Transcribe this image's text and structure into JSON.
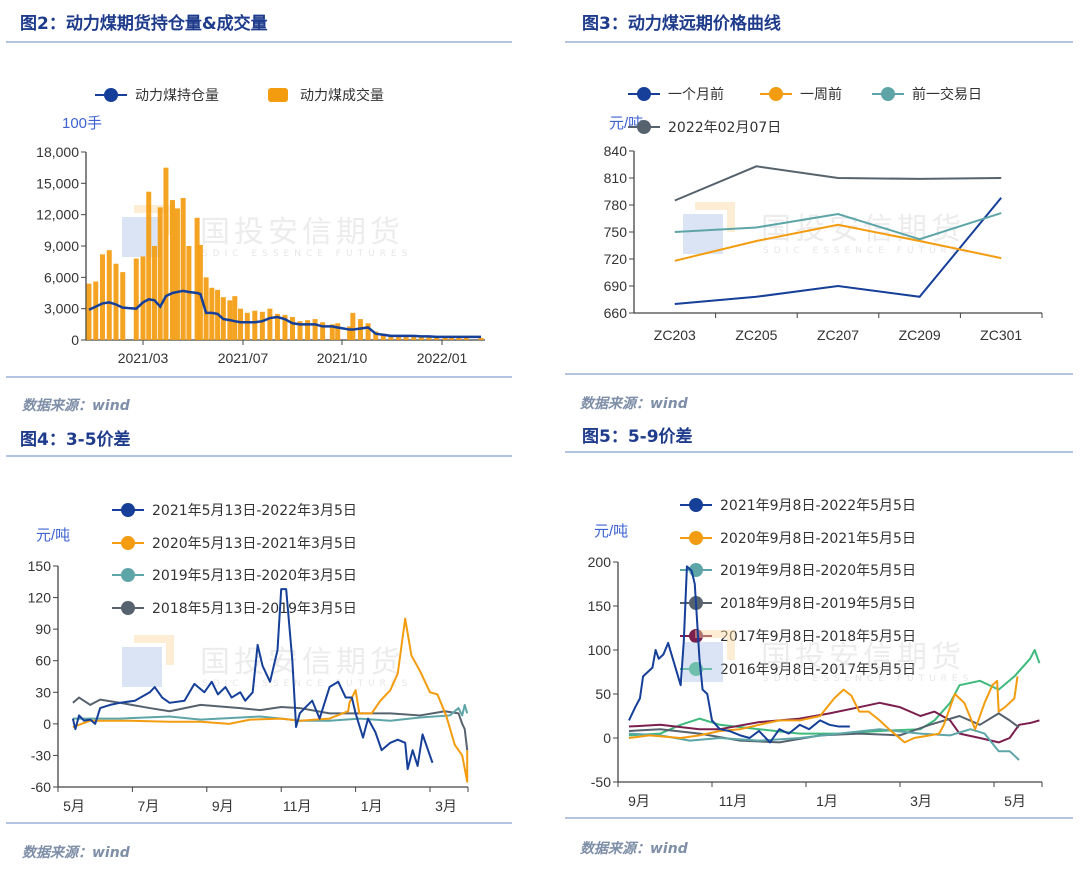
{
  "source_label": "数据来源：wind",
  "watermark": {
    "cn": "国投安信期货",
    "en": "SDIC ESSENCE FUTURES"
  },
  "colors": {
    "title": "#1f3c8c",
    "rule": "#b3c3e2",
    "unit": "#3e63d1"
  },
  "chart_data": [
    {
      "type": "bar+line",
      "title": "图2：动力煤期货持仓量&成交量",
      "yunit": "100手",
      "ylim": [
        0,
        18000
      ],
      "yticks": [
        0,
        3000,
        6000,
        9000,
        12000,
        15000,
        18000
      ],
      "xticks": [
        {
          "date": "2021-03-01",
          "label": "2021/03"
        },
        {
          "date": "2021-07-01",
          "label": "2021/07"
        },
        {
          "date": "2021-10-01",
          "label": "2021/10"
        },
        {
          "date": "2022-01-01",
          "label": "2022/01"
        }
      ],
      "grid": false,
      "legend": "top",
      "x": [
        "2021-01-04",
        "2021-01-11",
        "2021-01-18",
        "2021-01-25",
        "2021-02-01",
        "2021-02-08",
        "2021-02-22",
        "2021-03-01",
        "2021-03-08",
        "2021-03-15",
        "2021-03-22",
        "2021-03-29",
        "2021-04-06",
        "2021-04-12",
        "2021-04-19",
        "2021-04-26",
        "2021-05-06",
        "2021-05-10",
        "2021-05-17",
        "2021-05-24",
        "2021-05-31",
        "2021-06-07",
        "2021-06-15",
        "2021-06-21",
        "2021-06-28",
        "2021-07-05",
        "2021-07-12",
        "2021-07-19",
        "2021-07-26",
        "2021-08-02",
        "2021-08-09",
        "2021-08-16",
        "2021-08-23",
        "2021-08-30",
        "2021-09-06",
        "2021-09-13",
        "2021-09-22",
        "2021-09-27",
        "2021-10-08",
        "2021-10-11",
        "2021-10-18",
        "2021-10-25",
        "2021-11-01",
        "2021-11-08",
        "2021-11-15",
        "2021-11-22",
        "2021-11-29",
        "2021-12-06",
        "2021-12-13",
        "2021-12-20",
        "2021-12-27",
        "2022-01-04",
        "2022-01-10",
        "2022-01-17",
        "2022-01-24",
        "2022-02-07"
      ],
      "series": [
        {
          "name": "动力煤持仓量",
          "type": "line",
          "color": "#153f98",
          "values": [
            2900,
            3200,
            3500,
            3600,
            3400,
            3100,
            3000,
            3600,
            3900,
            3800,
            3200,
            4200,
            4500,
            4600,
            4700,
            4600,
            4500,
            4400,
            2600,
            2600,
            2500,
            2000,
            1900,
            1800,
            1700,
            1700,
            1700,
            1800,
            2100,
            2200,
            2000,
            1600,
            1500,
            1500,
            1500,
            1300,
            1300,
            1200,
            1000,
            1000,
            1100,
            1200,
            600,
            500,
            400,
            400,
            400,
            400,
            350,
            350,
            300,
            300,
            300,
            300,
            300,
            300
          ]
        },
        {
          "name": "动力煤成交量",
          "type": "bar",
          "color": "#f39c0f",
          "values": [
            5400,
            5600,
            8200,
            8600,
            7300,
            6500,
            7800,
            8000,
            14200,
            9000,
            12700,
            16500,
            13400,
            12600,
            13600,
            9000,
            11700,
            9100,
            6000,
            5000,
            4800,
            4100,
            3800,
            4200,
            3000,
            2600,
            2800,
            2700,
            3000,
            2500,
            2400,
            2200,
            1800,
            1900,
            2000,
            1700,
            1500,
            1600,
            1300,
            2600,
            2000,
            1600,
            800,
            600,
            500,
            400,
            400,
            350,
            300,
            300,
            300,
            250,
            250,
            200,
            200,
            200
          ]
        }
      ]
    },
    {
      "type": "line",
      "title": "图3：动力煤远期价格曲线",
      "yunit": "元/吨",
      "ylim": [
        660,
        840
      ],
      "yticks": [
        660,
        690,
        720,
        750,
        780,
        810,
        840
      ],
      "categories": [
        "ZC203",
        "ZC205",
        "ZC207",
        "ZC209",
        "ZC301"
      ],
      "grid": false,
      "legend": "top",
      "series": [
        {
          "name": "一个月前",
          "color": "#153f98",
          "values": [
            670,
            678,
            690,
            678,
            788
          ]
        },
        {
          "name": "一周前",
          "color": "#f39c0f",
          "values": [
            718,
            740,
            758,
            740,
            721
          ]
        },
        {
          "name": "前一交易日",
          "color": "#5ea5a8",
          "values": [
            750,
            755,
            770,
            742,
            771
          ]
        },
        {
          "name": "2022年02月07日",
          "color": "#56636e",
          "values": [
            785,
            823,
            810,
            809,
            810
          ]
        }
      ]
    },
    {
      "type": "line",
      "title": "图4：3-5价差",
      "yunit": "元/吨",
      "ylim": [
        -60,
        150
      ],
      "yticks": [
        -60,
        -30,
        0,
        30,
        60,
        90,
        120,
        150
      ],
      "xticks": [
        "5月",
        "7月",
        "9月",
        "11月",
        "1月",
        "3月"
      ],
      "grid": false,
      "legend": "top",
      "series": [
        {
          "name": "2021年5月13日-2022年3月5日",
          "color": "#153f98",
          "x": [
            "05-13",
            "05-15",
            "05-18",
            "05-22",
            "05-27",
            "06-01",
            "06-05",
            "06-13",
            "06-21",
            "07-03",
            "07-15",
            "07-19",
            "07-25",
            "08-01",
            "08-13",
            "08-21",
            "08-29",
            "09-05",
            "09-10",
            "09-16",
            "09-21",
            "09-28",
            "10-02",
            "10-08",
            "10-12",
            "10-16",
            "10-22",
            "10-28",
            "10-31",
            "11-05",
            "11-10",
            "11-13",
            "11-16",
            "11-20",
            "11-26",
            "12-02",
            "12-10",
            "12-17",
            "12-23",
            "12-28",
            "01-01",
            "01-07",
            "01-11",
            "01-17",
            "01-22",
            "01-29",
            "02-05",
            "02-11",
            "02-13",
            "02-17",
            "02-21",
            "02-25",
            "03-03"
          ],
          "values": [
            5,
            -5,
            8,
            3,
            4,
            0,
            15,
            18,
            20,
            22,
            30,
            35,
            25,
            20,
            22,
            38,
            30,
            40,
            28,
            35,
            25,
            30,
            22,
            30,
            75,
            55,
            40,
            70,
            128,
            128,
            60,
            -3,
            10,
            15,
            22,
            5,
            35,
            40,
            25,
            25,
            10,
            -13,
            5,
            -8,
            -25,
            -18,
            -15,
            -18,
            -43,
            -25,
            -40,
            -10,
            -37
          ]
        },
        {
          "name": "2020年5月13日-2021年3月5日",
          "color": "#f39c0f",
          "x": [
            "05-13",
            "05-27",
            "06-29",
            "08-01",
            "08-26",
            "09-19",
            "10-06",
            "10-31",
            "11-16",
            "12-10",
            "12-25",
            "12-26",
            "01-01",
            "01-04",
            "01-14",
            "01-21",
            "01-29",
            "02-05",
            "02-11",
            "02-16",
            "02-23",
            "03-01",
            "03-07",
            "03-14",
            "03-21",
            "03-27",
            "03-31",
            "04-01"
          ],
          "values": [
            -3,
            3,
            3,
            2,
            2,
            0,
            4,
            5,
            3,
            5,
            12,
            20,
            32,
            10,
            10,
            22,
            32,
            48,
            100,
            65,
            50,
            30,
            28,
            8,
            -20,
            -30,
            -55,
            -25
          ]
        },
        {
          "name": "2019年5月13日-2020年3月5日",
          "color": "#5ea5a8",
          "x": [
            "05-13",
            "06-21",
            "08-01",
            "08-26",
            "09-11",
            "10-14",
            "10-31",
            "11-16",
            "12-10",
            "01-04",
            "01-29",
            "02-23",
            "03-17",
            "03-24",
            "03-27",
            "03-29",
            "04-01"
          ],
          "values": [
            5,
            5,
            7,
            4,
            5,
            7,
            5,
            3,
            3,
            5,
            3,
            6,
            8,
            15,
            8,
            18,
            10
          ]
        },
        {
          "name": "2018年5月13日-2019年3月5日",
          "color": "#56636e",
          "x": [
            "05-13",
            "05-18",
            "05-27",
            "06-05",
            "06-21",
            "07-15",
            "08-01",
            "08-26",
            "09-28",
            "10-14",
            "10-31",
            "11-16",
            "12-10",
            "01-04",
            "01-29",
            "02-23",
            "03-13",
            "03-24",
            "03-27",
            "03-29",
            "04-01"
          ],
          "values": [
            20,
            25,
            18,
            23,
            20,
            15,
            12,
            18,
            15,
            13,
            16,
            15,
            10,
            10,
            10,
            8,
            12,
            10,
            0,
            -5,
            -25
          ]
        }
      ]
    },
    {
      "type": "line",
      "title": "图5：5-9价差",
      "yunit": "元/吨",
      "ylim": [
        -50,
        200
      ],
      "yticks": [
        -50,
        0,
        50,
        100,
        150,
        200
      ],
      "xticks": [
        "9月",
        "11月",
        "1月",
        "3月",
        "5月"
      ],
      "grid": false,
      "legend": "top",
      "series": [
        {
          "name": "2021年9月8日-2022年5月5日",
          "color": "#153f98",
          "x": [
            "09-08",
            "09-12",
            "09-15",
            "09-17",
            "09-20",
            "09-23",
            "09-25",
            "09-27",
            "09-30",
            "10-03",
            "10-06",
            "10-11",
            "10-13",
            "10-15",
            "10-18",
            "10-20",
            "10-23",
            "10-25",
            "10-28",
            "11-01",
            "11-06",
            "11-12",
            "11-19",
            "11-25",
            "12-01",
            "12-08",
            "12-14",
            "12-20",
            "12-27",
            "01-03",
            "01-10",
            "01-16",
            "01-22",
            "01-29"
          ],
          "values": [
            20,
            35,
            45,
            70,
            75,
            80,
            100,
            90,
            95,
            108,
            90,
            60,
            110,
            195,
            190,
            175,
            90,
            55,
            50,
            20,
            10,
            8,
            3,
            0,
            8,
            -5,
            10,
            5,
            15,
            10,
            20,
            15,
            13,
            13
          ]
        },
        {
          "name": "2020年9月8日-2021年5月5日",
          "color": "#f39c0f",
          "x": [
            "09-08",
            "09-21",
            "10-11",
            "10-23",
            "11-06",
            "11-19",
            "12-01",
            "12-14",
            "12-27",
            "01-10",
            "01-19",
            "01-25",
            "01-30",
            "02-05",
            "02-11",
            "02-18",
            "02-24",
            "03-04",
            "03-10",
            "03-20",
            "03-26",
            "03-29",
            "04-03",
            "04-06",
            "04-12",
            "04-19",
            "04-25",
            "04-30",
            "05-03",
            "05-04",
            "05-08",
            "05-11",
            "05-14",
            "05-16"
          ],
          "values": [
            0,
            3,
            0,
            3,
            8,
            10,
            15,
            20,
            20,
            25,
            45,
            55,
            48,
            30,
            30,
            20,
            10,
            -5,
            0,
            3,
            5,
            15,
            35,
            50,
            40,
            10,
            40,
            60,
            65,
            30,
            35,
            40,
            45,
            70
          ]
        },
        {
          "name": "2019年9月8日-2020年5月5日",
          "color": "#5ea5a8",
          "x": [
            "09-08",
            "09-28",
            "10-17",
            "11-06",
            "12-01",
            "12-27",
            "01-22",
            "02-18",
            "03-14",
            "04-03",
            "04-16",
            "04-25",
            "05-04",
            "05-11",
            "05-17"
          ],
          "values": [
            5,
            3,
            -3,
            0,
            -3,
            0,
            5,
            10,
            5,
            3,
            10,
            5,
            -15,
            -15,
            -25
          ]
        },
        {
          "name": "2018年9月8日-2019年5月5日",
          "color": "#56636e",
          "x": [
            "09-08",
            "09-28",
            "10-23",
            "11-19",
            "12-14",
            "01-10",
            "02-05",
            "03-01",
            "03-20",
            "04-09",
            "04-22",
            "05-04",
            "05-11",
            "05-17"
          ],
          "values": [
            8,
            10,
            5,
            -3,
            -5,
            3,
            5,
            3,
            15,
            25,
            15,
            28,
            20,
            12
          ]
        },
        {
          "name": "2017年9月8日-2018年5月5日",
          "color": "#7a1f4e",
          "x": [
            "09-08",
            "09-28",
            "10-23",
            "11-06",
            "12-01",
            "12-27",
            "01-16",
            "02-05",
            "02-18",
            "03-01",
            "03-14",
            "03-23",
            "04-03",
            "04-09",
            "04-22",
            "05-04",
            "05-11",
            "05-17",
            "05-24",
            "05-30"
          ],
          "values": [
            13,
            15,
            10,
            10,
            18,
            22,
            28,
            35,
            40,
            35,
            25,
            30,
            20,
            5,
            0,
            -5,
            0,
            15,
            17,
            20
          ]
        },
        {
          "name": "2016年9月8日-2017年5月5日",
          "color": "#3dba7c",
          "x": [
            "09-08",
            "09-28",
            "10-11",
            "10-23",
            "11-06",
            "12-01",
            "12-27",
            "01-22",
            "02-18",
            "03-14",
            "03-23",
            "04-03",
            "04-09",
            "04-22",
            "05-04",
            "05-14",
            "05-24",
            "05-27",
            "05-30"
          ],
          "values": [
            3,
            5,
            15,
            22,
            15,
            10,
            5,
            5,
            8,
            10,
            20,
            40,
            60,
            65,
            55,
            70,
            90,
            100,
            85
          ]
        }
      ]
    }
  ]
}
